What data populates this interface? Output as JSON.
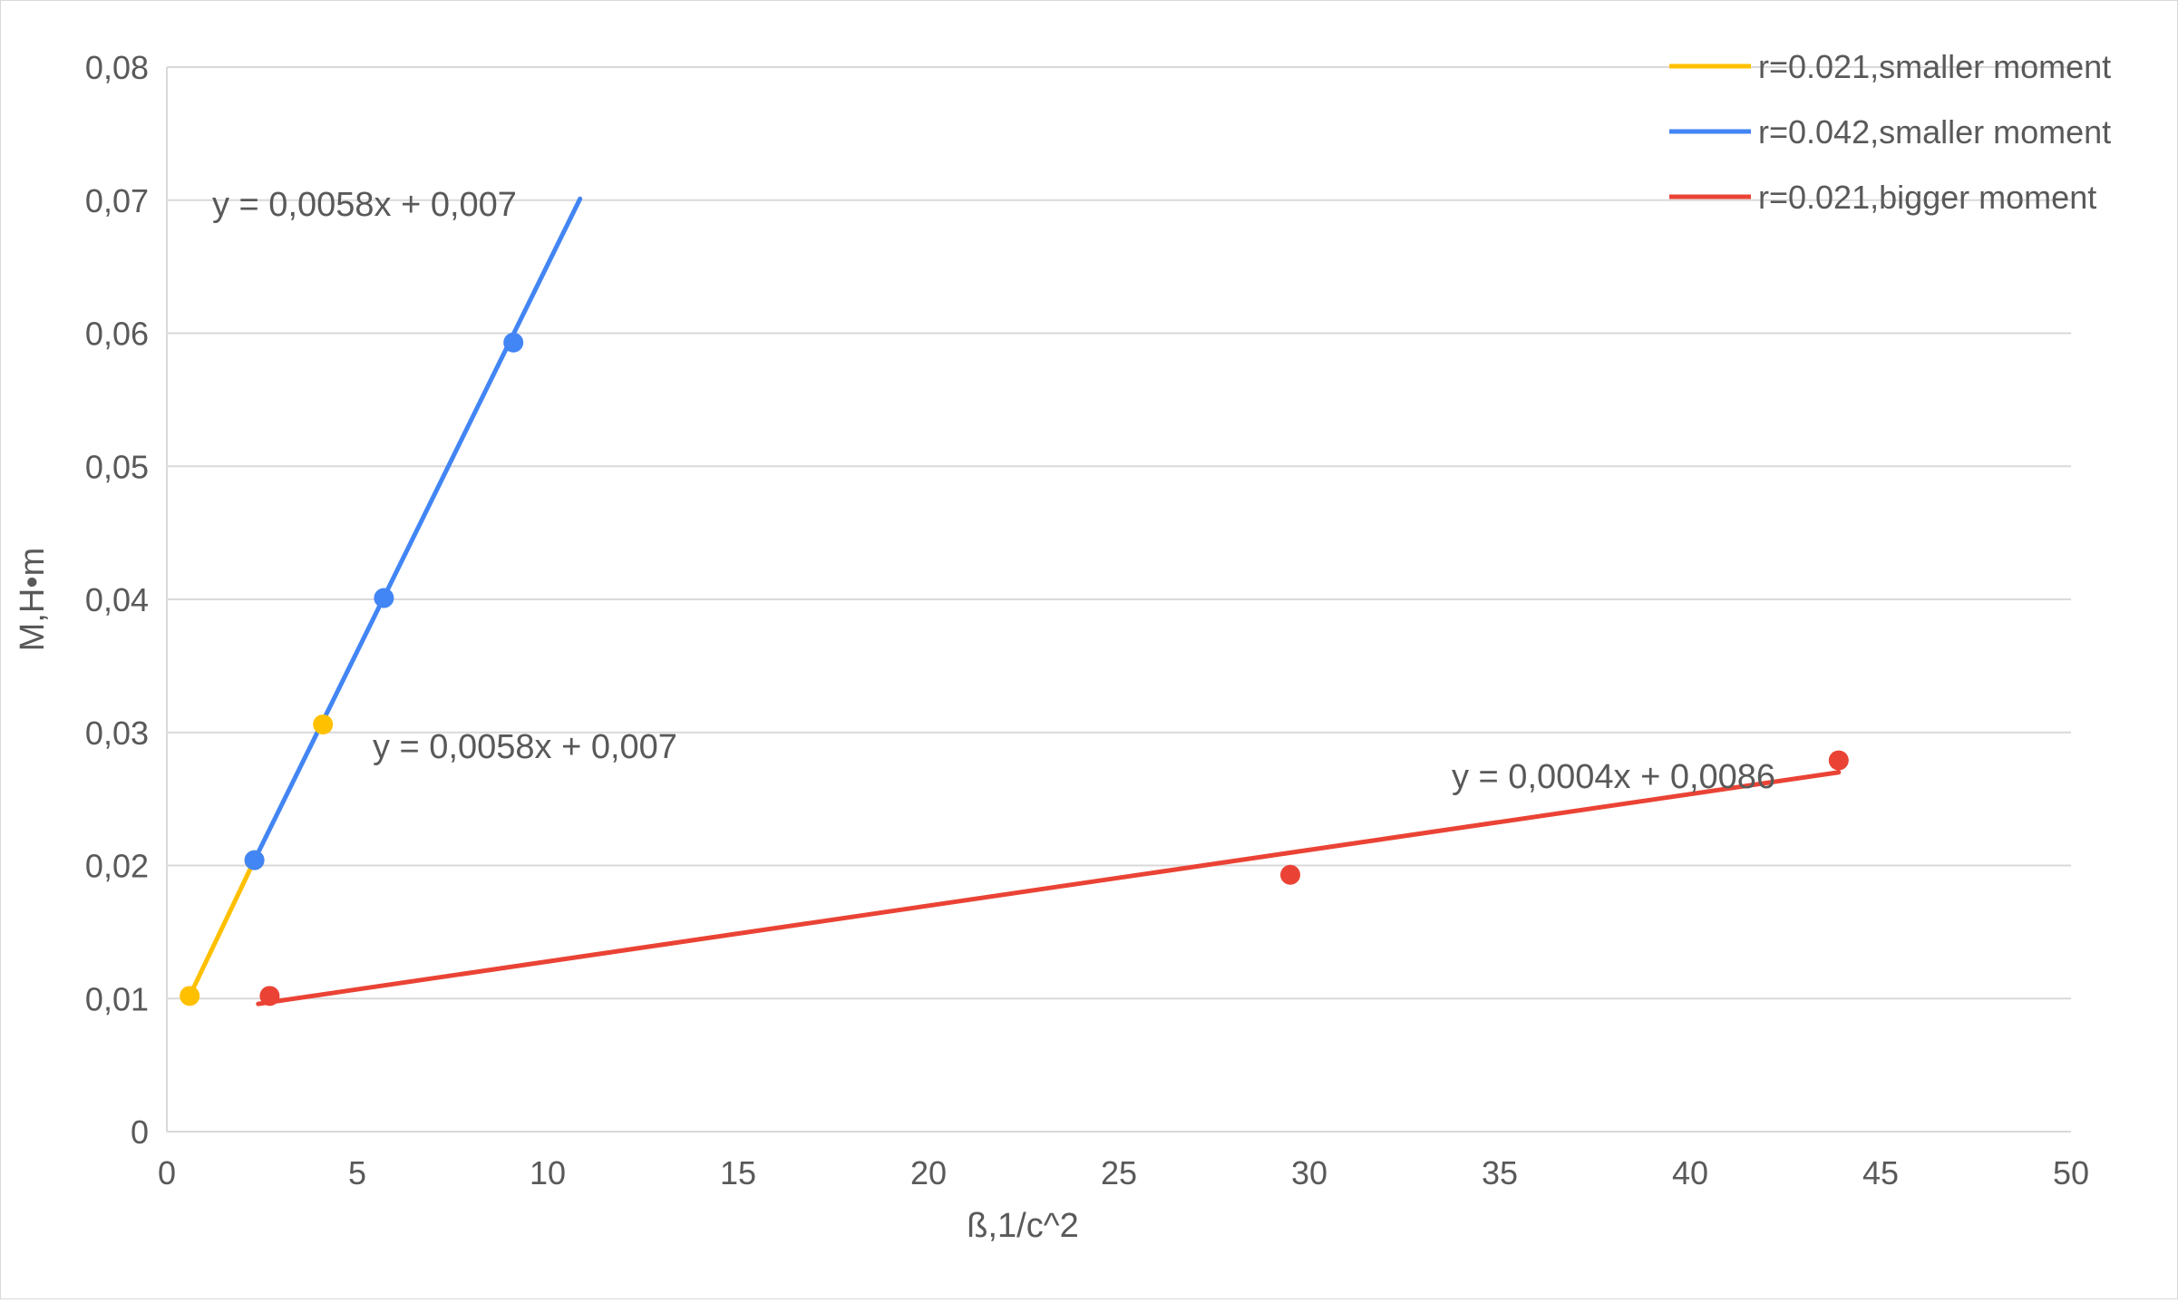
{
  "chart_data": {
    "type": "scatter",
    "title": "",
    "xlabel": "ß,1/c^2",
    "ylabel": "M,H•m",
    "xlim": [
      0,
      50
    ],
    "ylim": [
      0,
      0.08
    ],
    "x_ticks": [
      0,
      5,
      10,
      15,
      20,
      25,
      30,
      35,
      40,
      45,
      50
    ],
    "x_tick_labels": [
      "0",
      "5",
      "10",
      "15",
      "20",
      "25",
      "30",
      "35",
      "40",
      "45",
      "50"
    ],
    "y_ticks": [
      0,
      0.01,
      0.02,
      0.03,
      0.04,
      0.05,
      0.06,
      0.07,
      0.08
    ],
    "y_tick_labels": [
      "0",
      "0,01",
      "0,02",
      "0,03",
      "0,04",
      "0,05",
      "0,06",
      "0,07",
      "0,08"
    ],
    "grid": "horizontal",
    "legend_position": "top-right",
    "series": [
      {
        "name": "r=0.021,smaller moment",
        "color": "#FFC000",
        "points": [
          [
            0.6,
            0.0102
          ],
          [
            2.3,
            0.0204
          ],
          [
            4.1,
            0.0306
          ]
        ],
        "trendline": {
          "x": [
            0.6,
            2.3
          ],
          "y": [
            0.0102,
            0.0204
          ],
          "label": "y = 0,0058x + 0,007"
        }
      },
      {
        "name": "r=0.042,smaller moment",
        "color": "#4285F4",
        "points": [
          [
            2.3,
            0.0204
          ],
          [
            5.7,
            0.0401
          ],
          [
            9.1,
            0.0593
          ]
        ],
        "trendline": {
          "x": [
            2.3,
            10.85
          ],
          "y": [
            0.0204,
            0.0701
          ],
          "label": "y = 0,0058x + 0,007"
        }
      },
      {
        "name": "r=0.021,bigger moment",
        "color": "#EA4335",
        "points": [
          [
            2.7,
            0.0102
          ],
          [
            29.5,
            0.0193
          ],
          [
            43.9,
            0.0279
          ]
        ],
        "trendline": {
          "x": [
            2.4,
            43.9
          ],
          "y": [
            0.0096,
            0.027
          ],
          "label": "y = 0,0004x + 0,0086"
        }
      }
    ]
  }
}
